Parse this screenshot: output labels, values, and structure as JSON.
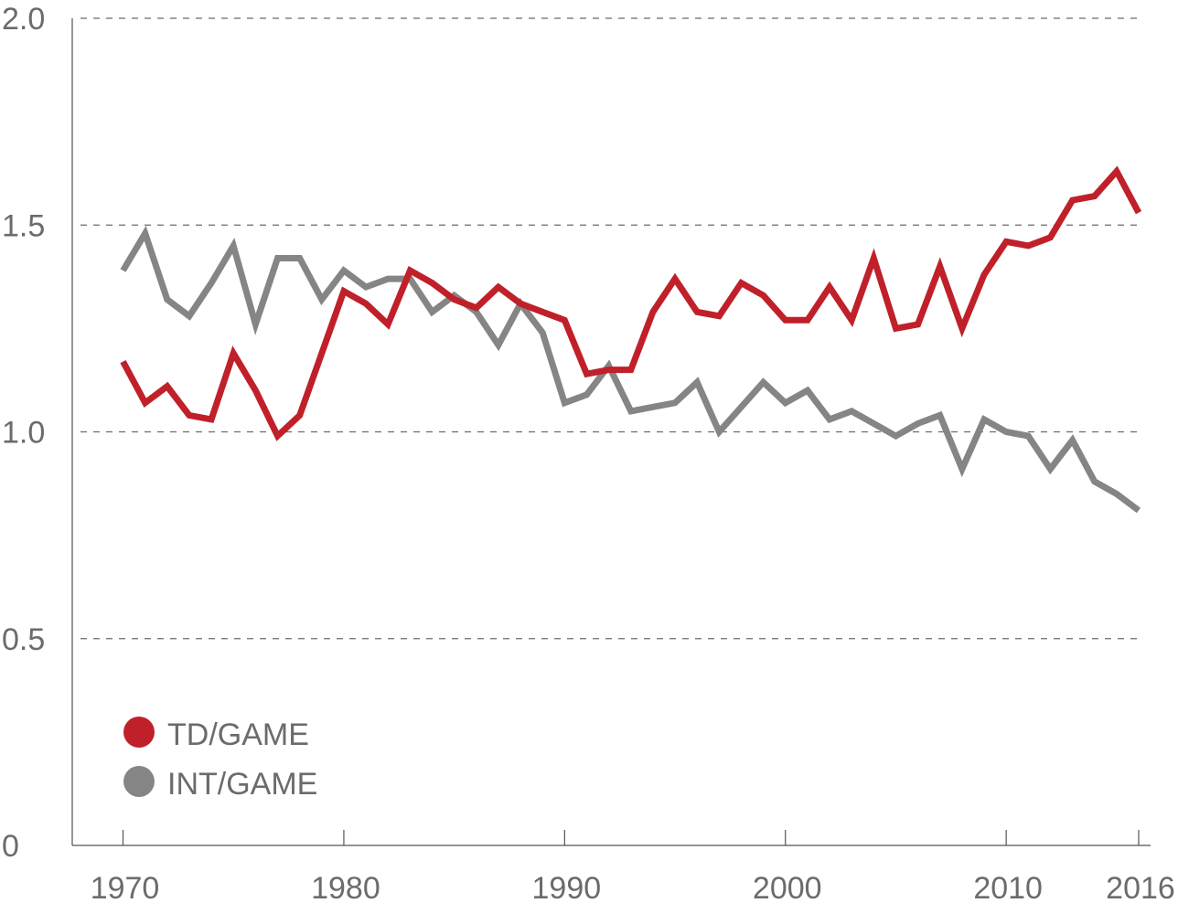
{
  "chart_data": {
    "type": "line",
    "title": "",
    "xlabel": "",
    "ylabel": "",
    "xlim": [
      1967.7,
      2016
    ],
    "ylim": [
      0,
      2.0
    ],
    "grid": "horizontal dashed",
    "legend_position": "bottom-left",
    "y_ticks": [
      {
        "value": 0,
        "label": "0"
      },
      {
        "value": 0.5,
        "label": "0.5"
      },
      {
        "value": 1.0,
        "label": "1.0"
      },
      {
        "value": 1.5,
        "label": "1.5"
      },
      {
        "value": 2.0,
        "label": "2.0"
      }
    ],
    "x_ticks": [
      {
        "value": 1970,
        "label": "1970"
      },
      {
        "value": 1980,
        "label": "1980"
      },
      {
        "value": 1990,
        "label": "1990"
      },
      {
        "value": 2000,
        "label": "2000"
      },
      {
        "value": 2010,
        "label": "2010"
      },
      {
        "value": 2016,
        "label": "2016"
      }
    ],
    "x": [
      1970,
      1971,
      1972,
      1973,
      1974,
      1975,
      1976,
      1977,
      1978,
      1979,
      1980,
      1981,
      1982,
      1983,
      1984,
      1985,
      1986,
      1987,
      1988,
      1989,
      1990,
      1991,
      1992,
      1993,
      1994,
      1995,
      1996,
      1997,
      1998,
      1999,
      2000,
      2001,
      2002,
      2003,
      2004,
      2005,
      2006,
      2007,
      2008,
      2009,
      2010,
      2011,
      2012,
      2013,
      2014,
      2015,
      2016
    ],
    "series": [
      {
        "name": "TD/GAME",
        "color": "#c0202a",
        "values": [
          1.17,
          1.07,
          1.11,
          1.04,
          1.03,
          1.19,
          1.1,
          0.99,
          1.04,
          1.19,
          1.34,
          1.31,
          1.26,
          1.39,
          1.36,
          1.32,
          1.3,
          1.35,
          1.31,
          1.29,
          1.27,
          1.14,
          1.15,
          1.15,
          1.29,
          1.37,
          1.29,
          1.28,
          1.36,
          1.33,
          1.27,
          1.27,
          1.35,
          1.27,
          1.42,
          1.25,
          1.26,
          1.4,
          1.25,
          1.38,
          1.46,
          1.45,
          1.47,
          1.56,
          1.57,
          1.63,
          1.53
        ]
      },
      {
        "name": "INT/GAME",
        "color": "#858585",
        "values": [
          1.39,
          1.48,
          1.32,
          1.28,
          1.36,
          1.45,
          1.26,
          1.42,
          1.42,
          1.32,
          1.39,
          1.35,
          1.37,
          1.37,
          1.29,
          1.33,
          1.29,
          1.21,
          1.31,
          1.24,
          1.07,
          1.09,
          1.16,
          1.05,
          1.06,
          1.07,
          1.12,
          1.0,
          1.06,
          1.12,
          1.07,
          1.1,
          1.03,
          1.05,
          1.02,
          0.99,
          1.02,
          1.04,
          0.91,
          1.03,
          1.0,
          0.99,
          0.91,
          0.98,
          0.88,
          0.85,
          0.81
        ]
      }
    ]
  }
}
